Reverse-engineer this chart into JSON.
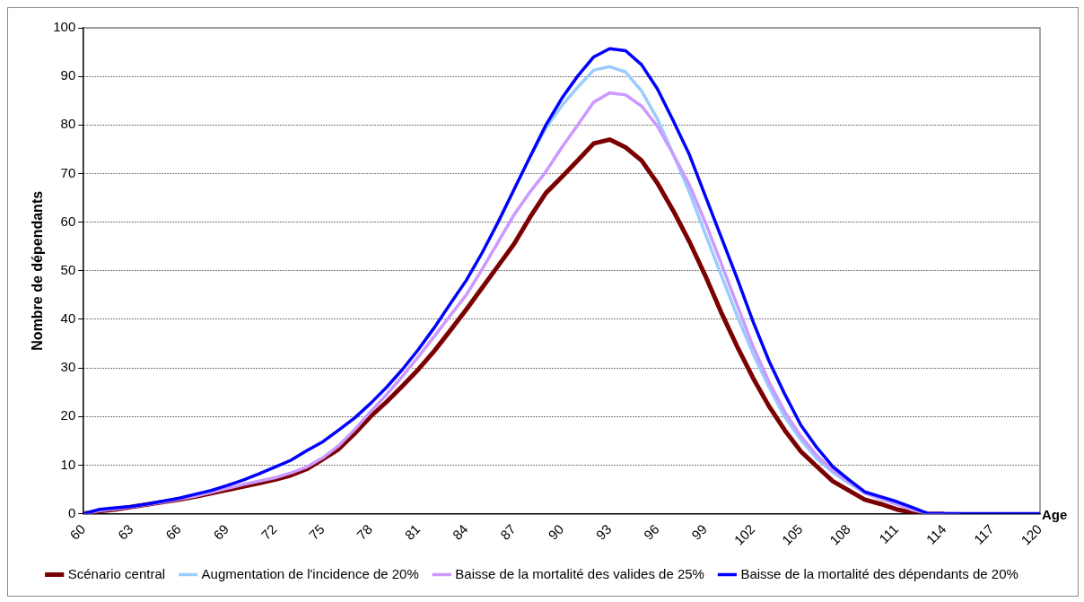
{
  "chart_data": {
    "type": "line",
    "xlabel": "Age",
    "ylabel": "Nombre de dépendants",
    "categories": [
      "60",
      null,
      null,
      "63",
      null,
      null,
      "66",
      null,
      null,
      "69",
      null,
      null,
      "72",
      null,
      null,
      "75",
      null,
      null,
      "78",
      null,
      null,
      "81",
      null,
      null,
      "84",
      null,
      null,
      "87",
      null,
      null,
      "90",
      null,
      null,
      "93",
      null,
      null,
      "96",
      null,
      null,
      "99",
      null,
      null,
      "102",
      null,
      null,
      "105",
      null,
      null,
      "108",
      null,
      null,
      "111",
      null,
      null,
      "114",
      null,
      null,
      "117",
      null,
      null,
      "120"
    ],
    "series": [
      {
        "name": "Scénario central",
        "color": "#7b0000",
        "values": [
          0,
          0.5,
          0.9,
          1.4,
          1.9,
          2.4,
          2.9,
          3.5,
          4.2,
          4.9,
          5.6,
          6.3,
          7.0,
          7.9,
          9.2,
          11.2,
          13.3,
          16.5,
          20,
          23,
          26.3,
          29.7,
          33.5,
          37.7,
          42,
          46.5,
          51,
          55.5,
          61,
          66,
          69.3,
          72.7,
          76.2,
          77,
          75.4,
          72.7,
          68,
          62.3,
          56,
          49,
          41.4,
          34.4,
          27.9,
          22.1,
          17.1,
          12.8,
          9.7,
          6.7,
          4.8,
          2.9,
          2,
          0.9,
          0.2,
          0,
          0,
          null,
          null,
          null,
          null,
          null,
          null
        ]
      },
      {
        "name": "Augmentation de l'incidence de 20%",
        "color": "#99ccff",
        "values": [
          null,
          null,
          null,
          null,
          null,
          null,
          null,
          null,
          null,
          null,
          null,
          null,
          null,
          null,
          null,
          null,
          null,
          null,
          null,
          null,
          null,
          null,
          null,
          null,
          null,
          null,
          null,
          null,
          73.4,
          79.4,
          84,
          87.8,
          91.3,
          92,
          90.9,
          87,
          81.2,
          73.9,
          66.2,
          57.6,
          49.1,
          40.7,
          32.9,
          26,
          19.8,
          15.2,
          11.3,
          8.5,
          6.3,
          4.3,
          3,
          2,
          1,
          0,
          0,
          null,
          null,
          null,
          null,
          null,
          null
        ]
      },
      {
        "name": "Baisse de la mortalité des valides de 25%",
        "color": "#cc99ff",
        "values": [
          0,
          0.6,
          1,
          1.4,
          1.9,
          2.4,
          3,
          3.6,
          4.4,
          5.2,
          6,
          6.7,
          7.4,
          8.4,
          9.6,
          11.5,
          14,
          17.3,
          21,
          24.5,
          28.3,
          32.3,
          36.5,
          40.8,
          45,
          50.3,
          55.9,
          61.5,
          66.2,
          70.4,
          75.4,
          80,
          84.7,
          86.6,
          86.2,
          83.9,
          79.7,
          73.9,
          67.7,
          60,
          51.5,
          42.9,
          34.4,
          27.1,
          20.9,
          15.9,
          12,
          8.9,
          6.6,
          4.3,
          3.2,
          2,
          0.8,
          0,
          0,
          0,
          null,
          null,
          null,
          null,
          null
        ]
      },
      {
        "name": "Baisse de la mortalité des dépendants de 20%",
        "color": "#0000ff",
        "values": [
          0,
          0.9,
          1.2,
          1.5,
          2,
          2.6,
          3.2,
          4,
          4.8,
          5.8,
          6.9,
          8.2,
          9.6,
          11,
          13,
          14.8,
          17.2,
          19.7,
          22.7,
          26,
          29.7,
          33.8,
          38.3,
          43.2,
          48,
          53.7,
          60,
          66.7,
          73.4,
          80,
          85.5,
          90.1,
          94,
          95.7,
          95.3,
          92.4,
          87.4,
          80.8,
          73.9,
          65.4,
          56.9,
          48.4,
          39.5,
          31.4,
          24.5,
          18.2,
          13.6,
          9.7,
          7,
          4.5,
          3.5,
          2.5,
          1.3,
          0,
          0,
          0,
          0,
          0,
          0,
          0,
          0
        ]
      }
    ],
    "ylim": [
      0,
      100
    ],
    "yticks": [
      0,
      10,
      20,
      30,
      40,
      50,
      60,
      70,
      80,
      90,
      100
    ],
    "grid": "y",
    "legend": "bottom",
    "marker": "none",
    "line_style": "solid"
  }
}
